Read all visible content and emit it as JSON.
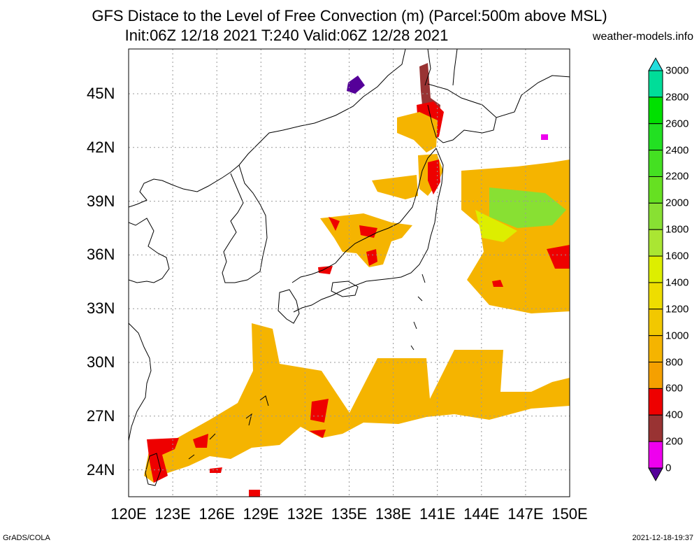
{
  "title": {
    "line1": "GFS Distace to the Level of Free Convection (m) (Parcel:500m above MSL)",
    "line2": "Init:06Z 12/18 2021 T:240 Valid:06Z 12/28 2021",
    "site": "weather-models.info"
  },
  "footer": {
    "left": "GrADS/COLA",
    "right": "2021-12-18-19:37"
  },
  "map": {
    "lon_labels": [
      "120E",
      "123E",
      "126E",
      "129E",
      "132E",
      "135E",
      "138E",
      "141E",
      "144E",
      "147E",
      "150E"
    ],
    "lat_labels": [
      "45N",
      "42N",
      "39N",
      "36N",
      "33N",
      "30N",
      "27N",
      "24N"
    ],
    "lon_range": [
      120,
      150
    ],
    "lat_range": [
      22.5,
      47.5
    ],
    "grid": "dotted"
  },
  "colorbar": {
    "labels": [
      "3000",
      "2800",
      "2600",
      "2400",
      "2200",
      "2000",
      "1800",
      "1600",
      "1400",
      "1200",
      "1000",
      "800",
      "600",
      "400",
      "200",
      "0"
    ],
    "colors": [
      "#22dddd",
      "#00dd99",
      "#00e000",
      "#22e022",
      "#44e022",
      "#66e022",
      "#88e033",
      "#aae633",
      "#ddee00",
      "#eedd00",
      "#f2c800",
      "#f5b400",
      "#f5a000",
      "#ee0000",
      "#993333",
      "#ee00ee",
      "#550099"
    ]
  }
}
